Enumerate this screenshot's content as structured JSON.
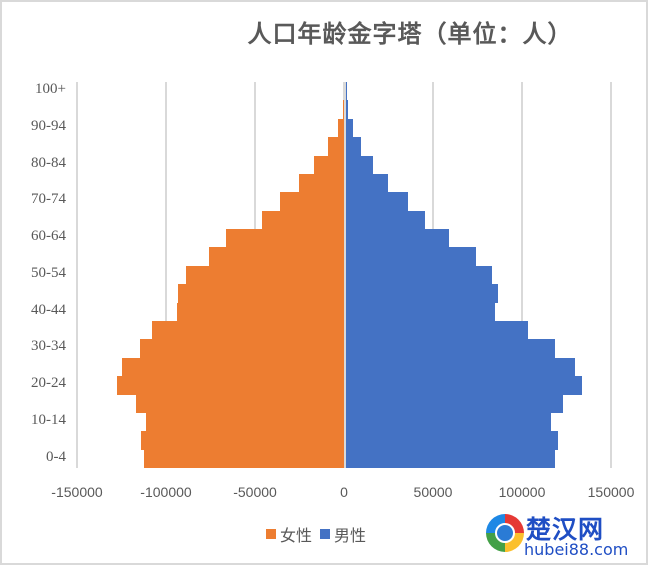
{
  "chart_data": {
    "type": "bar",
    "orientation": "horizontal",
    "title": "人口年龄金字塔（单位：人）",
    "xlabel": "",
    "ylabel": "",
    "xlim": [
      -150000,
      150000
    ],
    "x_ticks": [
      -150000,
      -100000,
      -50000,
      0,
      50000,
      100000,
      150000
    ],
    "x_tick_labels": [
      "-150000",
      "-100000",
      "-50000",
      "0",
      "50000",
      "100000",
      "150000"
    ],
    "y_tick_labels": [
      "0-4",
      "10-14",
      "20-24",
      "30-34",
      "40-44",
      "50-54",
      "60-64",
      "70-74",
      "80-84",
      "90-94",
      "100+"
    ],
    "grid": true,
    "legend_position": "bottom",
    "categories": [
      "0-4",
      "5-9",
      "10-14",
      "15-19",
      "20-24",
      "25-29",
      "30-34",
      "35-39",
      "40-44",
      "45-49",
      "50-54",
      "55-59",
      "60-64",
      "65-69",
      "70-74",
      "75-79",
      "80-84",
      "85-89",
      "90-94",
      "95-99",
      "100+"
    ],
    "series": [
      {
        "name": "女性",
        "color": "#ed7d31",
        "values": [
          -112400,
          -114000,
          -111000,
          -117000,
          -127500,
          -125000,
          -114500,
          -108000,
          -94000,
          -93300,
          -89000,
          -76000,
          -66300,
          -46000,
          -36000,
          -25300,
          -17000,
          -9000,
          -3400,
          -700,
          -100
        ]
      },
      {
        "name": "男性",
        "color": "#4472c4",
        "values": [
          117500,
          119000,
          115000,
          122000,
          132500,
          128500,
          117500,
          102300,
          83800,
          85500,
          82000,
          73000,
          58000,
          44500,
          35000,
          23600,
          15200,
          8400,
          3900,
          1100,
          300
        ]
      }
    ]
  },
  "legend": {
    "female_label": "女性",
    "male_label": "男性"
  },
  "watermark": {
    "name": "楚汉网",
    "url": "hubei88.com"
  }
}
